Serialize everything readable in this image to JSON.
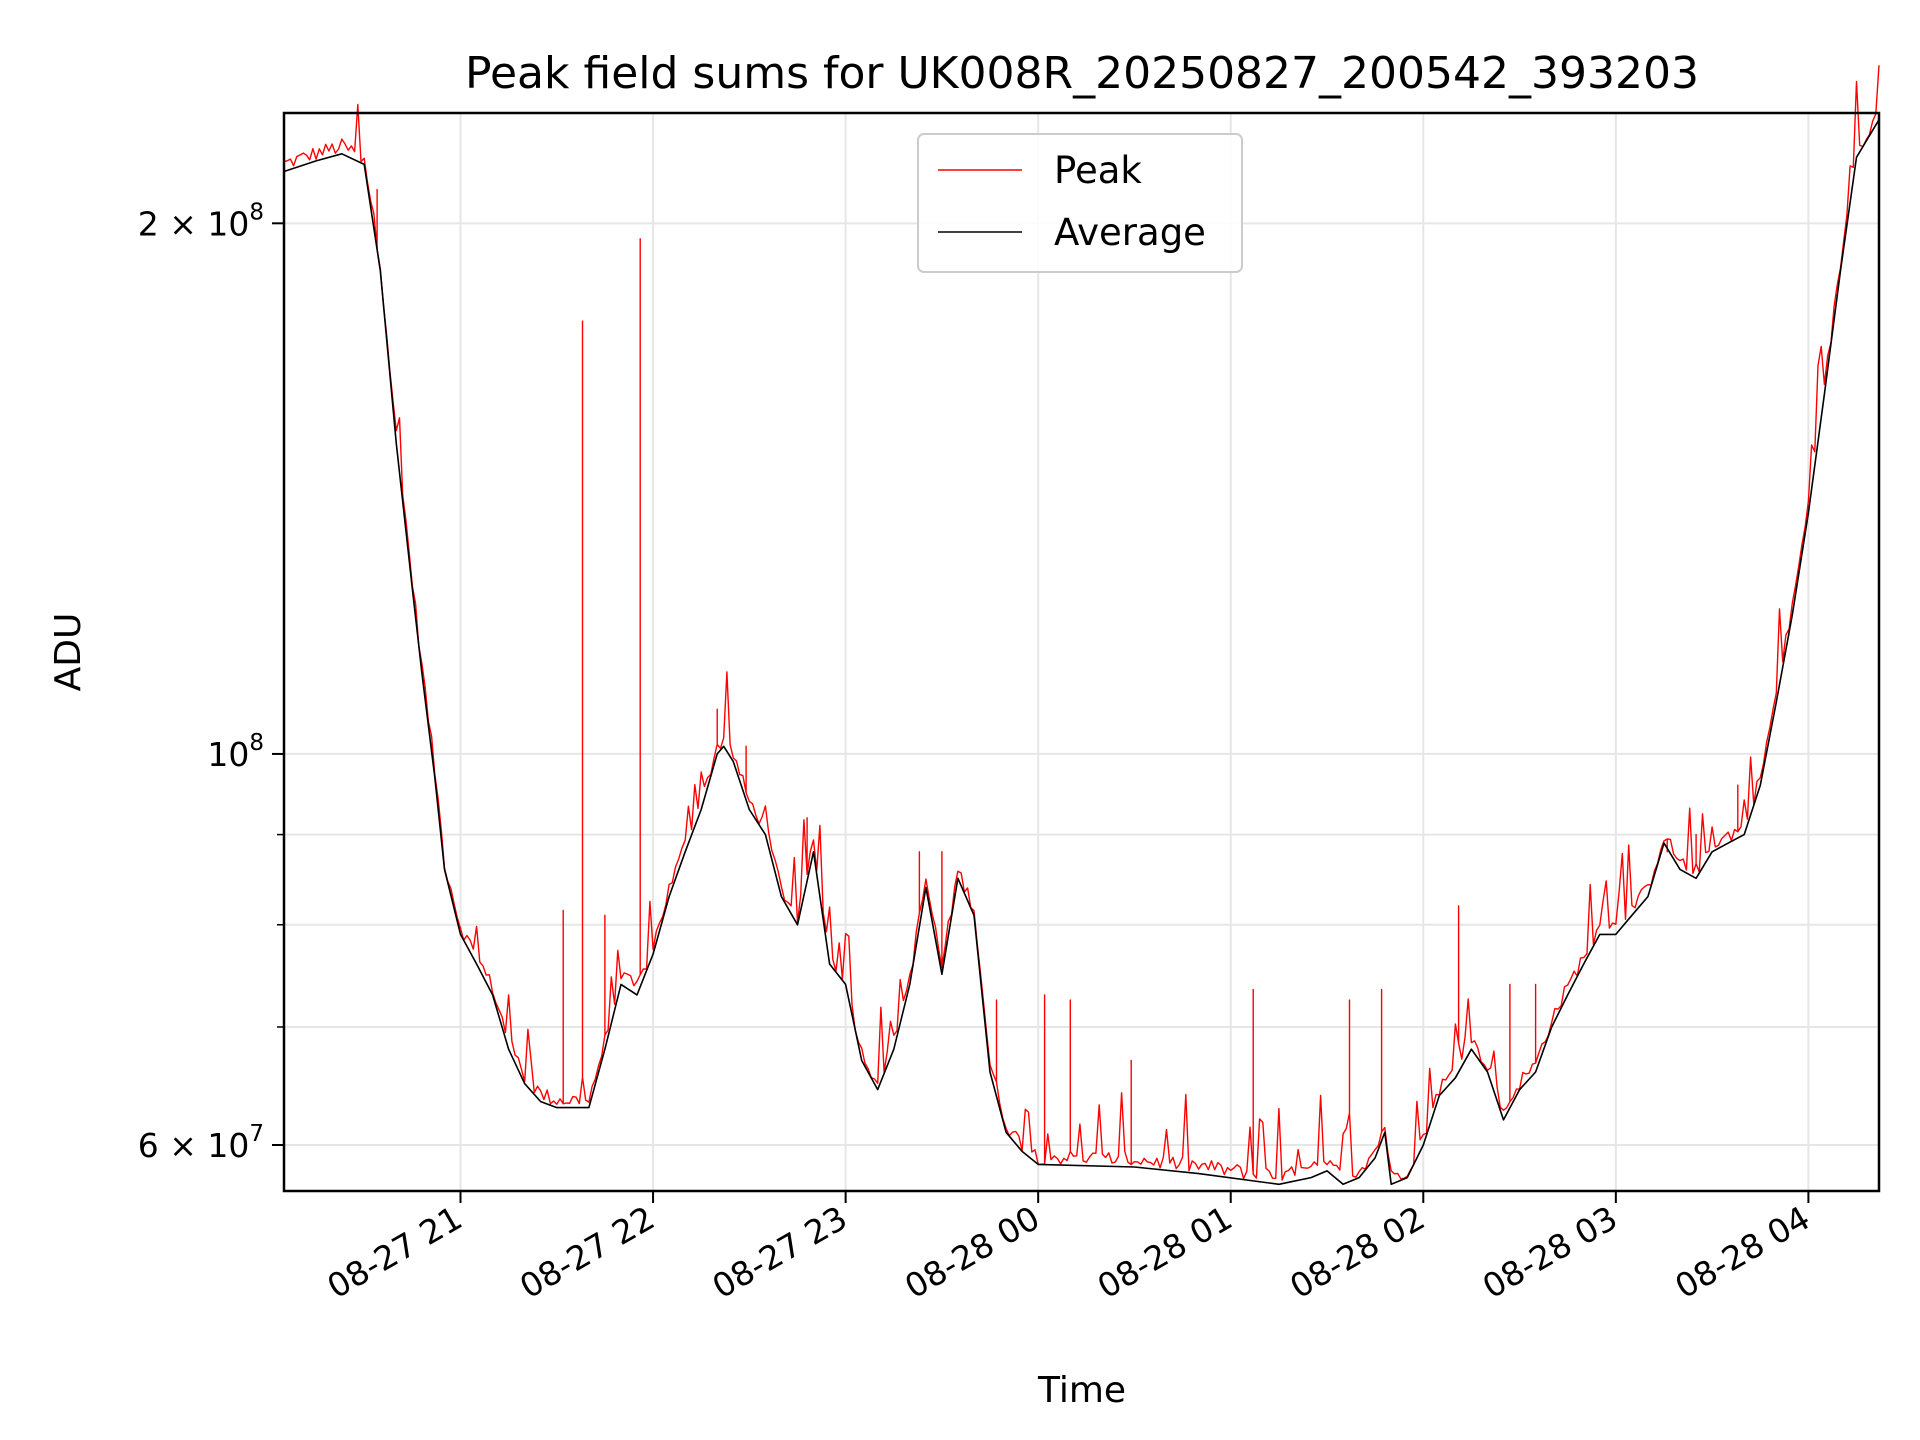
{
  "chart_data": {
    "type": "line",
    "title": "Peak field sums for UK008R_20250827_200542_393203",
    "xlabel": "Time",
    "ylabel": "ADU",
    "yscale": "log",
    "xlim": [
      "2025-08-27 20:05",
      "2025-08-28 04:22"
    ],
    "ylim": [
      56500000,
      231000000
    ],
    "grid": true,
    "legend": {
      "placement": "top-center",
      "entries": [
        "Peak",
        "Average"
      ]
    },
    "colors": {
      "Peak": "#ff0000",
      "Average": "#000000"
    },
    "x_ticks": [
      {
        "time": "2025-08-27 21:00",
        "label": "08-27 21"
      },
      {
        "time": "2025-08-27 22:00",
        "label": "08-27 22"
      },
      {
        "time": "2025-08-27 23:00",
        "label": "08-27 23"
      },
      {
        "time": "2025-08-28 00:00",
        "label": "08-28 00"
      },
      {
        "time": "2025-08-28 01:00",
        "label": "08-28 01"
      },
      {
        "time": "2025-08-28 02:00",
        "label": "08-28 02"
      },
      {
        "time": "2025-08-28 03:00",
        "label": "08-28 03"
      },
      {
        "time": "2025-08-28 04:00",
        "label": "08-28 04"
      }
    ],
    "y_major_ticks": [
      {
        "value": 60000000,
        "base": "6 × 10",
        "exp": "7"
      },
      {
        "value": 100000000,
        "base": "10",
        "exp": "8"
      },
      {
        "value": 200000000,
        "base": "2 × 10",
        "exp": "8"
      }
    ],
    "y_minor_ticks": [
      70000000,
      80000000,
      90000000
    ],
    "series": [
      {
        "name": "Average",
        "x": [
          "2025-08-27 20:05",
          "2025-08-27 20:15",
          "2025-08-27 20:23",
          "2025-08-27 20:30",
          "2025-08-27 20:35",
          "2025-08-27 20:40",
          "2025-08-27 20:45",
          "2025-08-27 20:48",
          "2025-08-27 20:52",
          "2025-08-27 20:55",
          "2025-08-27 21:00",
          "2025-08-27 21:05",
          "2025-08-27 21:10",
          "2025-08-27 21:15",
          "2025-08-27 21:20",
          "2025-08-27 21:25",
          "2025-08-27 21:30",
          "2025-08-27 21:35",
          "2025-08-27 21:40",
          "2025-08-27 21:45",
          "2025-08-27 21:50",
          "2025-08-27 21:55",
          "2025-08-27 22:00",
          "2025-08-27 22:05",
          "2025-08-27 22:10",
          "2025-08-27 22:15",
          "2025-08-27 22:20",
          "2025-08-27 22:22",
          "2025-08-27 22:25",
          "2025-08-27 22:30",
          "2025-08-27 22:35",
          "2025-08-27 22:40",
          "2025-08-27 22:45",
          "2025-08-27 22:50",
          "2025-08-27 22:55",
          "2025-08-27 23:00",
          "2025-08-27 23:05",
          "2025-08-27 23:10",
          "2025-08-27 23:15",
          "2025-08-27 23:20",
          "2025-08-27 23:25",
          "2025-08-27 23:30",
          "2025-08-27 23:35",
          "2025-08-27 23:40",
          "2025-08-27 23:45",
          "2025-08-27 23:50",
          "2025-08-27 23:55",
          "2025-08-28 00:00",
          "2025-08-28 00:30",
          "2025-08-28 00:50",
          "2025-08-28 01:15",
          "2025-08-28 01:25",
          "2025-08-28 01:30",
          "2025-08-28 01:35",
          "2025-08-28 01:40",
          "2025-08-28 01:45",
          "2025-08-28 01:48",
          "2025-08-28 01:50",
          "2025-08-28 01:55",
          "2025-08-28 02:00",
          "2025-08-28 02:05",
          "2025-08-28 02:10",
          "2025-08-28 02:15",
          "2025-08-28 02:20",
          "2025-08-28 02:25",
          "2025-08-28 02:30",
          "2025-08-28 02:35",
          "2025-08-28 02:40",
          "2025-08-28 02:45",
          "2025-08-28 02:50",
          "2025-08-28 02:55",
          "2025-08-28 03:00",
          "2025-08-28 03:05",
          "2025-08-28 03:10",
          "2025-08-28 03:15",
          "2025-08-28 03:20",
          "2025-08-28 03:25",
          "2025-08-28 03:30",
          "2025-08-28 03:35",
          "2025-08-28 03:40",
          "2025-08-28 03:45",
          "2025-08-28 03:50",
          "2025-08-28 03:55",
          "2025-08-28 04:00",
          "2025-08-28 04:05",
          "2025-08-28 04:10",
          "2025-08-28 04:15",
          "2025-08-28 04:22"
        ],
        "values": [
          214000000,
          217000000,
          219000000,
          216000000,
          188000000,
          150000000,
          124000000,
          111000000,
          97000000,
          86000000,
          79000000,
          76000000,
          73000000,
          68000000,
          65000000,
          63500000,
          63000000,
          63000000,
          63000000,
          68000000,
          74000000,
          73000000,
          77000000,
          83000000,
          88000000,
          93000000,
          100000000,
          101000000,
          99000000,
          93000000,
          90000000,
          83000000,
          80000000,
          88000000,
          76000000,
          74000000,
          67000000,
          64500000,
          68000000,
          74000000,
          84000000,
          75000000,
          85000000,
          81000000,
          66000000,
          61000000,
          59500000,
          58500000,
          58300000,
          57800000,
          57000000,
          57500000,
          58000000,
          57000000,
          57500000,
          59000000,
          61000000,
          57000000,
          57500000,
          60000000,
          64000000,
          65500000,
          68000000,
          66000000,
          62000000,
          64500000,
          66000000,
          70000000,
          73000000,
          76000000,
          79000000,
          79000000,
          81000000,
          83000000,
          89000000,
          86000000,
          85000000,
          88000000,
          89000000,
          90000000,
          96000000,
          107000000,
          120000000,
          137000000,
          160000000,
          188000000,
          218000000,
          229000000
        ]
      },
      {
        "name": "Peak",
        "baseline": "Average",
        "spikes": [
          {
            "x": "2025-08-27 20:34",
            "value": 209000000
          },
          {
            "x": "2025-08-27 21:38",
            "value": 176000000
          },
          {
            "x": "2025-08-27 21:56",
            "value": 196000000
          },
          {
            "x": "2025-08-27 21:32",
            "value": 81500000
          },
          {
            "x": "2025-08-27 21:45",
            "value": 81000000
          },
          {
            "x": "2025-08-27 22:20",
            "value": 106000000
          },
          {
            "x": "2025-08-27 22:29",
            "value": 101000000
          },
          {
            "x": "2025-08-27 22:48",
            "value": 92000000
          },
          {
            "x": "2025-08-27 23:23",
            "value": 88000000
          },
          {
            "x": "2025-08-27 23:30",
            "value": 88000000
          },
          {
            "x": "2025-08-27 23:47",
            "value": 72500000
          },
          {
            "x": "2025-08-28 00:02",
            "value": 73000000
          },
          {
            "x": "2025-08-28 00:10",
            "value": 72500000
          },
          {
            "x": "2025-08-28 00:29",
            "value": 67000000
          },
          {
            "x": "2025-08-28 01:07",
            "value": 73500000
          },
          {
            "x": "2025-08-28 01:37",
            "value": 72500000
          },
          {
            "x": "2025-08-28 01:47",
            "value": 73500000
          },
          {
            "x": "2025-08-28 02:11",
            "value": 82000000
          },
          {
            "x": "2025-08-28 02:27",
            "value": 74000000
          },
          {
            "x": "2025-08-28 02:35",
            "value": 74000000
          },
          {
            "x": "2025-08-28 03:16",
            "value": 88000000
          },
          {
            "x": "2025-08-28 03:25",
            "value": 90000000
          },
          {
            "x": "2025-08-28 03:38",
            "value": 96000000
          }
        ]
      }
    ]
  }
}
